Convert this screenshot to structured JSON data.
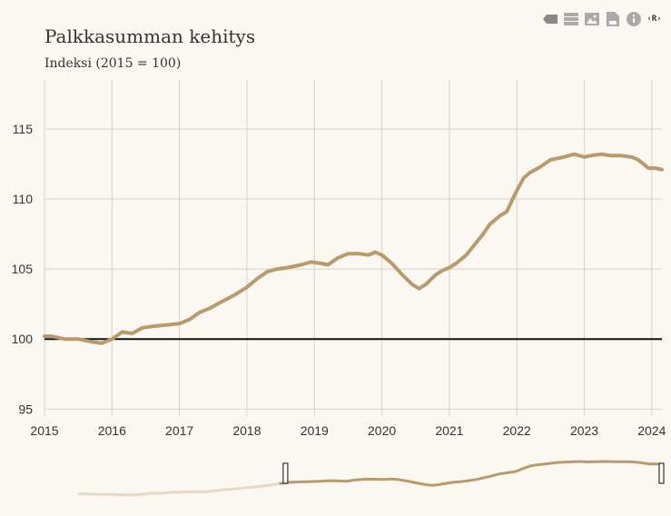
{
  "toolbar": {
    "icons": [
      "legend-icon",
      "table-icon",
      "image-icon",
      "csv-icon",
      "info-icon",
      "r-code-icon"
    ],
    "r_label": "‹R›"
  },
  "chart_data": {
    "type": "line",
    "title": "Palkkasumman kehitys",
    "subtitle": "Indeksi (2015 = 100)",
    "xlabel": "",
    "ylabel": "",
    "xlim": [
      2015,
      2024.15
    ],
    "ylim": [
      94.5,
      118.5
    ],
    "x_ticks": [
      "2015",
      "2016",
      "2017",
      "2018",
      "2019",
      "2020",
      "2021",
      "2022",
      "2023",
      "2024"
    ],
    "y_ticks": [
      "95",
      "100",
      "105",
      "110",
      "115"
    ],
    "reference_line": 100,
    "color": "#b89a6e",
    "grid": true,
    "series": [
      {
        "name": "",
        "x": [
          2015.0,
          2015.1,
          2015.3,
          2015.5,
          2015.7,
          2015.85,
          2016.0,
          2016.15,
          2016.3,
          2016.45,
          2016.6,
          2016.8,
          2017.0,
          2017.15,
          2017.3,
          2017.45,
          2017.6,
          2017.8,
          2018.0,
          2018.15,
          2018.3,
          2018.45,
          2018.6,
          2018.8,
          2018.95,
          2019.1,
          2019.2,
          2019.35,
          2019.5,
          2019.65,
          2019.8,
          2019.9,
          2020.0,
          2020.15,
          2020.3,
          2020.45,
          2020.55,
          2020.65,
          2020.8,
          2020.9,
          2021.0,
          2021.1,
          2021.25,
          2021.35,
          2021.5,
          2021.6,
          2021.75,
          2021.85,
          2022.0,
          2022.1,
          2022.2,
          2022.35,
          2022.5,
          2022.7,
          2022.85,
          2023.0,
          2023.1,
          2023.25,
          2023.4,
          2023.55,
          2023.7,
          2023.8,
          2023.95,
          2024.05,
          2024.15
        ],
        "y": [
          100.2,
          100.2,
          100.0,
          100.0,
          99.8,
          99.7,
          100.0,
          100.5,
          100.4,
          100.8,
          100.9,
          101.0,
          101.1,
          101.4,
          101.9,
          102.2,
          102.6,
          103.1,
          103.7,
          104.3,
          104.8,
          105.0,
          105.1,
          105.3,
          105.5,
          105.4,
          105.3,
          105.8,
          106.1,
          106.1,
          106.0,
          106.2,
          106.0,
          105.4,
          104.6,
          103.9,
          103.6,
          103.9,
          104.6,
          104.9,
          105.1,
          105.4,
          106.0,
          106.6,
          107.5,
          108.2,
          108.8,
          109.1,
          110.6,
          111.5,
          111.9,
          112.3,
          112.8,
          113.0,
          113.2,
          113.0,
          113.1,
          113.2,
          113.1,
          113.1,
          113.0,
          112.8,
          112.2,
          112.2,
          112.1
        ]
      }
    ]
  }
}
